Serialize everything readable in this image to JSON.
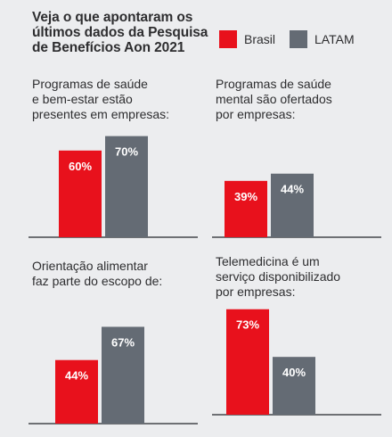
{
  "title": "Veja o que apontaram os últimos dados da Pesquisa de Benefícios Aon 2021",
  "colors": {
    "brasil": "#e8111c",
    "latam": "#646b74",
    "baseline": "#44474c",
    "background": "#ecedef"
  },
  "legend": [
    {
      "label": "Brasil",
      "color": "#e8111c"
    },
    {
      "label": "LATAM",
      "color": "#646b74"
    }
  ],
  "chart_data": [
    {
      "type": "bar",
      "title": "Programas de saúde\ne bem-estar estão\npresentes em empresas:",
      "categories": [
        "Brasil",
        "LATAM"
      ],
      "values": [
        60,
        70
      ],
      "data_labels": [
        "60%",
        "70%"
      ],
      "unit": "%"
    },
    {
      "type": "bar",
      "title": "Programas de saúde\nmental são ofertados\npor empresas:",
      "categories": [
        "Brasil",
        "LATAM"
      ],
      "values": [
        39,
        44
      ],
      "data_labels": [
        "39%",
        "44%"
      ],
      "unit": "%"
    },
    {
      "type": "bar",
      "title": "Orientação alimentar\nfaz parte do escopo de:",
      "categories": [
        "Brasil",
        "LATAM"
      ],
      "values": [
        44,
        67
      ],
      "data_labels": [
        "44%",
        "67%"
      ],
      "unit": "%"
    },
    {
      "type": "bar",
      "title": "Telemedicina é um\nserviço disponibilizado\npor empresas:",
      "categories": [
        "Brasil",
        "LATAM"
      ],
      "values": [
        73,
        40
      ],
      "data_labels": [
        "73%",
        "40%"
      ],
      "unit": "%"
    }
  ]
}
